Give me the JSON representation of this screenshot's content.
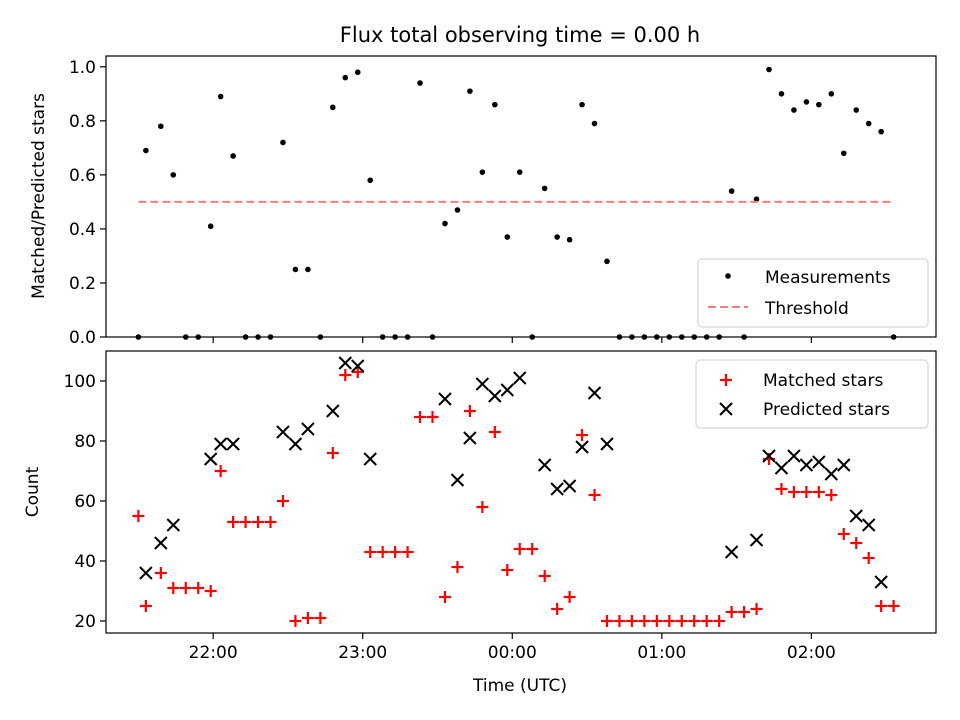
{
  "title": "Flux total observing time = 0.00 h",
  "chart_data": [
    {
      "type": "scatter",
      "ylabel": "Matched/Predicted stars",
      "xlabel": "",
      "xlim": [
        "21:17",
        "02:50"
      ],
      "ylim": [
        0,
        1.04
      ],
      "yticks": [
        "0.0",
        "0.2",
        "0.4",
        "0.6",
        "0.8",
        "1.0"
      ],
      "legend_position": "lower-right",
      "series": [
        {
          "name": "Measurements",
          "marker": "dot",
          "color": "#000000",
          "x": [
            "21:30",
            "21:33",
            "21:39",
            "21:44",
            "21:49",
            "21:54",
            "21:59",
            "22:03",
            "22:08",
            "22:13",
            "22:18",
            "22:23",
            "22:28",
            "22:33",
            "22:38",
            "22:43",
            "22:48",
            "22:53",
            "22:58",
            "23:03",
            "23:08",
            "23:13",
            "23:18",
            "23:23",
            "23:28",
            "23:33",
            "23:38",
            "23:43",
            "23:48",
            "23:53",
            "23:58",
            "00:03",
            "00:08",
            "00:13",
            "00:18",
            "00:23",
            "00:28",
            "00:33",
            "00:38",
            "00:43",
            "00:48",
            "00:53",
            "00:58",
            "01:03",
            "01:08",
            "01:13",
            "01:18",
            "01:23",
            "01:28",
            "01:33",
            "01:38",
            "01:43",
            "01:48",
            "01:53",
            "01:58",
            "02:03",
            "02:08",
            "02:13",
            "02:18",
            "02:23",
            "02:28",
            "02:33"
          ],
          "y": [
            0.0,
            0.69,
            0.78,
            0.6,
            0.0,
            0.0,
            0.41,
            0.89,
            0.67,
            0.0,
            0.0,
            0.0,
            0.72,
            0.25,
            0.25,
            0.0,
            0.85,
            0.96,
            0.98,
            0.58,
            0.0,
            0.0,
            0.0,
            0.94,
            0.0,
            0.42,
            0.47,
            0.91,
            0.61,
            0.86,
            0.37,
            0.61,
            0.0,
            0.55,
            0.37,
            0.36,
            0.86,
            0.79,
            0.28,
            0.0,
            0.0,
            0.0,
            0.0,
            0.0,
            0.0,
            0.0,
            0.0,
            0.0,
            0.54,
            0.0,
            0.51,
            0.99,
            0.9,
            0.84,
            0.87,
            0.86,
            0.9,
            0.68,
            0.84,
            0.79,
            0.76,
            0.0
          ]
        },
        {
          "name": "Threshold",
          "style": "dashed",
          "color": "#f08080",
          "x": [
            "21:30",
            "02:33"
          ],
          "y": [
            0.5,
            0.5
          ]
        }
      ]
    },
    {
      "type": "scatter",
      "ylabel": "Count",
      "xlabel": "Time (UTC)",
      "xlim": [
        "21:17",
        "02:50"
      ],
      "ylim": [
        16,
        110
      ],
      "yticks": [
        "20",
        "40",
        "60",
        "80",
        "100"
      ],
      "xticks": [
        "22:00",
        "23:00",
        "00:00",
        "01:00",
        "02:00"
      ],
      "legend_position": "upper-right",
      "series": [
        {
          "name": "Matched stars",
          "marker": "plus",
          "color": "#ff0000",
          "x": [
            "21:30",
            "21:33",
            "21:39",
            "21:44",
            "21:49",
            "21:54",
            "21:59",
            "22:03",
            "22:08",
            "22:13",
            "22:18",
            "22:23",
            "22:28",
            "22:33",
            "22:38",
            "22:43",
            "22:48",
            "22:53",
            "22:58",
            "23:03",
            "23:08",
            "23:13",
            "23:18",
            "23:23",
            "23:28",
            "23:33",
            "23:38",
            "23:43",
            "23:48",
            "23:53",
            "23:58",
            "00:03",
            "00:08",
            "00:13",
            "00:18",
            "00:23",
            "00:28",
            "00:33",
            "00:38",
            "00:43",
            "00:48",
            "00:53",
            "00:58",
            "01:03",
            "01:08",
            "01:13",
            "01:18",
            "01:23",
            "01:28",
            "01:33",
            "01:38",
            "01:43",
            "01:48",
            "01:53",
            "01:58",
            "02:03",
            "02:08",
            "02:13",
            "02:18",
            "02:23",
            "02:28",
            "02:33"
          ],
          "y": [
            55,
            25,
            36,
            31,
            31,
            31,
            30,
            70,
            53,
            53,
            53,
            53,
            60,
            20,
            21,
            21,
            76,
            102,
            103,
            43,
            43,
            43,
            43,
            88,
            88,
            28,
            38,
            90,
            58,
            83,
            37,
            44,
            44,
            35,
            24,
            28,
            82,
            62,
            20,
            20,
            20,
            20,
            20,
            20,
            20,
            20,
            20,
            20,
            23,
            23,
            24,
            74,
            64,
            63,
            63,
            63,
            62,
            49,
            46,
            41,
            25,
            25
          ]
        },
        {
          "name": "Predicted stars",
          "marker": "x",
          "color": "#000000",
          "x": [
            "21:33",
            "21:39",
            "21:44",
            "21:59",
            "22:03",
            "22:08",
            "22:28",
            "22:33",
            "22:38",
            "22:48",
            "22:53",
            "22:58",
            "23:03",
            "23:33",
            "23:38",
            "23:43",
            "23:48",
            "23:53",
            "23:58",
            "00:03",
            "00:13",
            "00:18",
            "00:23",
            "00:28",
            "00:33",
            "00:38",
            "01:28",
            "01:38",
            "01:43",
            "01:48",
            "01:53",
            "01:58",
            "02:03",
            "02:08",
            "02:13",
            "02:18",
            "02:23",
            "02:28"
          ],
          "y": [
            36,
            46,
            52,
            74,
            79,
            79,
            83,
            79,
            84,
            90,
            106,
            105,
            74,
            94,
            67,
            81,
            99,
            95,
            97,
            101,
            72,
            64,
            65,
            78,
            96,
            79,
            43,
            47,
            75,
            71,
            75,
            72,
            73,
            69,
            72,
            55,
            52,
            33
          ]
        }
      ]
    }
  ]
}
